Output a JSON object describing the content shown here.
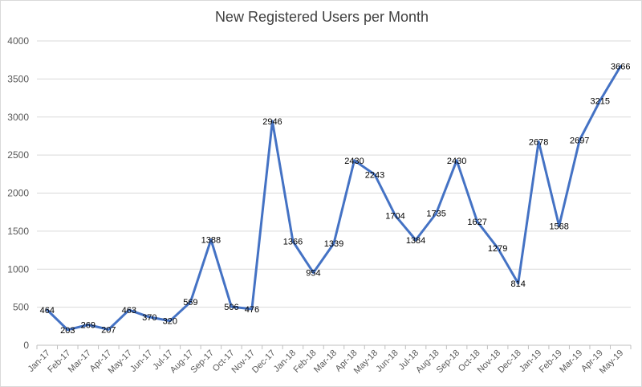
{
  "chart_data": {
    "type": "line",
    "title": "New Registered Users per Month",
    "xlabel": "",
    "ylabel": "",
    "ylim": [
      0,
      4000
    ],
    "yticks": [
      0,
      500,
      1000,
      1500,
      2000,
      2500,
      3000,
      3500,
      4000
    ],
    "grid": true,
    "legend": "none",
    "line_color": "#4472C4",
    "categories": [
      "Jan-17",
      "Feb-17",
      "Mar-17",
      "Apr-17",
      "May-17",
      "Jun-17",
      "Jul-17",
      "Aug-17",
      "Sep-17",
      "Oct-17",
      "Nov-17",
      "Dec-17",
      "Jan-18",
      "Feb-18",
      "Mar-18",
      "Apr-18",
      "May-18",
      "Jun-18",
      "Jul-18",
      "Aug-18",
      "Sep-18",
      "Oct-18",
      "Nov-18",
      "Dec-18",
      "Jan-19",
      "Feb-19",
      "Mar-19",
      "Apr-19",
      "May-19"
    ],
    "series": [
      {
        "values": [
          464,
          203,
          269,
          207,
          463,
          370,
          320,
          569,
          1388,
          506,
          476,
          2946,
          1366,
          954,
          1339,
          2430,
          2243,
          1704,
          1384,
          1735,
          2430,
          1627,
          1279,
          814,
          2678,
          1568,
          2697,
          3215,
          3666
        ]
      }
    ]
  }
}
